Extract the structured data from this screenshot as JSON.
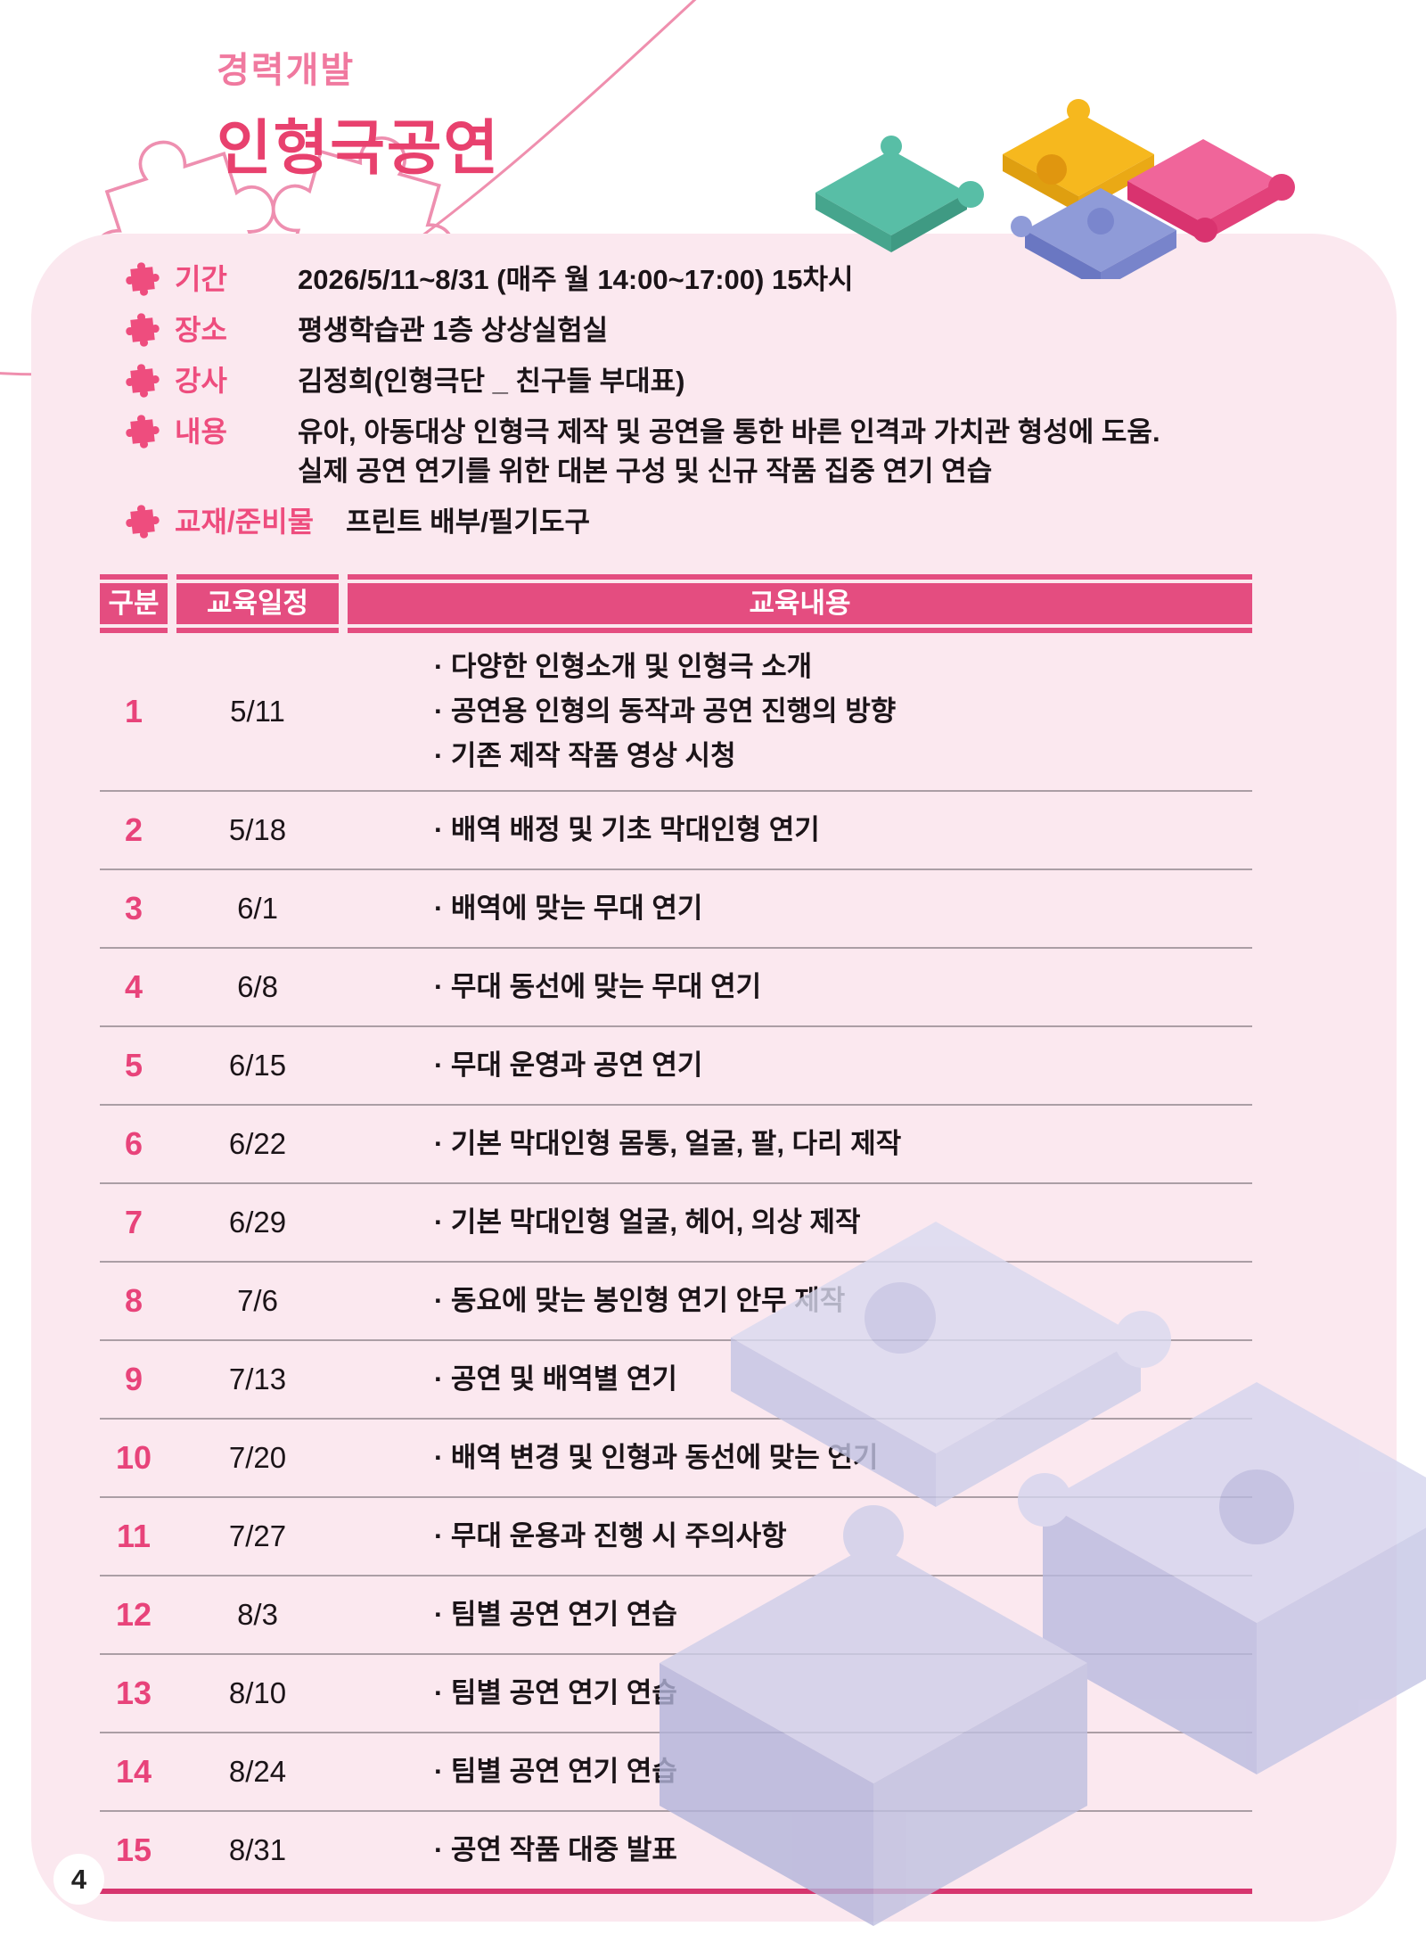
{
  "page": {
    "number": "4"
  },
  "header": {
    "category": "경력개발",
    "title": "인형극공연"
  },
  "icons": {
    "info_marker": "puzzle-piece-icon",
    "decorations": [
      "puzzle-outline-sketch",
      "puzzle-3d-cluster",
      "puzzle-3d-watermark"
    ]
  },
  "colors": {
    "panel_bg": "#fbe8ef",
    "subtitle_pink": "#f0799f",
    "title_pink": "#e8416e",
    "accent_pink": "#e44d80",
    "label_pink": "#ee4d7e",
    "row_number_pink": "#e8437a",
    "text_black": "#1b1418",
    "row_divider": "#ab9ea5",
    "table_bottom_rule": "#d6356e",
    "puzzle_teal": "#58bea6",
    "puzzle_yellow": "#f6b81e",
    "puzzle_pink": "#f0659a",
    "puzzle_blue": "#8f9bd8",
    "watermark_lavender": "#cdcee9"
  },
  "info": {
    "rows": [
      {
        "label": "기간",
        "lines": [
          "2026/5/11~8/31 (매주 월 14:00~17:00) 15차시"
        ]
      },
      {
        "label": "장소",
        "lines": [
          "평생학습관 1층 상상실험실"
        ]
      },
      {
        "label": "강사",
        "lines": [
          "김정희(인형극단 _ 친구들 부대표)"
        ]
      },
      {
        "label": "내용",
        "lines": [
          "유아, 아동대상 인형극 제작 및 공연을 통한 바른 인격과 가치관 형성에 도움.",
          "실제 공연 연기를 위한 대본 구성 및 신규 작품 집중 연기 연습"
        ]
      },
      {
        "label": "교재/준비물",
        "lines": [
          "프린트 배부/필기도구"
        ]
      }
    ]
  },
  "table": {
    "columns": [
      "구분",
      "교육일정",
      "교육내용"
    ],
    "rows": [
      {
        "no": "1",
        "date": "5/11",
        "items": [
          "· 다양한 인형소개 및 인형극 소개",
          "· 공연용 인형의 동작과 공연 진행의 방향",
          "· 기존 제작 작품 영상 시청"
        ]
      },
      {
        "no": "2",
        "date": "5/18",
        "items": [
          "· 배역 배정 및 기초 막대인형 연기"
        ]
      },
      {
        "no": "3",
        "date": "6/1",
        "items": [
          "· 배역에 맞는 무대 연기"
        ]
      },
      {
        "no": "4",
        "date": "6/8",
        "items": [
          "· 무대 동선에 맞는 무대 연기"
        ]
      },
      {
        "no": "5",
        "date": "6/15",
        "items": [
          "· 무대 운영과 공연 연기"
        ]
      },
      {
        "no": "6",
        "date": "6/22",
        "items": [
          "· 기본 막대인형 몸통, 얼굴, 팔, 다리 제작"
        ]
      },
      {
        "no": "7",
        "date": "6/29",
        "items": [
          "· 기본 막대인형 얼굴, 헤어, 의상 제작"
        ]
      },
      {
        "no": "8",
        "date": "7/6",
        "items": [
          "· 동요에 맞는 봉인형 연기 안무 제작"
        ]
      },
      {
        "no": "9",
        "date": "7/13",
        "items": [
          "· 공연 및 배역별 연기"
        ]
      },
      {
        "no": "10",
        "date": "7/20",
        "items": [
          "· 배역 변경 및 인형과 동선에 맞는 연기"
        ]
      },
      {
        "no": "11",
        "date": "7/27",
        "items": [
          "· 무대 운용과 진행 시 주의사항"
        ]
      },
      {
        "no": "12",
        "date": "8/3",
        "items": [
          "· 팀별 공연 연기 연습"
        ]
      },
      {
        "no": "13",
        "date": "8/10",
        "items": [
          "· 팀별 공연 연기 연습"
        ]
      },
      {
        "no": "14",
        "date": "8/24",
        "items": [
          "· 팀별 공연 연기 연습"
        ]
      },
      {
        "no": "15",
        "date": "8/31",
        "items": [
          "· 공연 작품 대중 발표"
        ]
      }
    ]
  }
}
